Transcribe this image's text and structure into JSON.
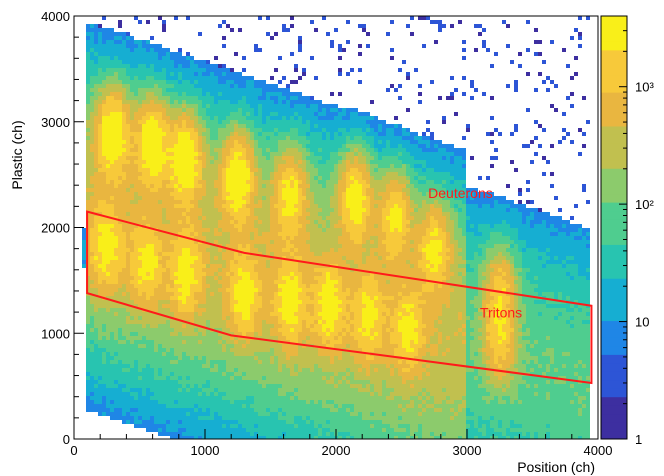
{
  "chart_data": {
    "type": "heatmap",
    "xlabel": "Position (ch)",
    "ylabel": "Plastic (ch)",
    "xlim": [
      0,
      4000
    ],
    "ylim": [
      0,
      4000
    ],
    "x_ticks": [
      0,
      1000,
      2000,
      3000,
      4000
    ],
    "y_ticks": [
      0,
      1000,
      2000,
      3000,
      4000
    ],
    "x_tick_labels": [
      "0",
      "1000",
      "2000",
      "3000",
      "4000"
    ],
    "y_tick_labels": [
      "0",
      "1000",
      "2000",
      "3000",
      "4000"
    ],
    "colorbar": {
      "scale": "log",
      "range": [
        1,
        4000
      ],
      "tick_labels": [
        "1",
        "10",
        "10²",
        "10³"
      ],
      "tick_values": [
        1,
        10,
        100,
        1000
      ],
      "colors": [
        "#3d2fa0",
        "#2d55d6",
        "#1f86e6",
        "#16aed2",
        "#28c4b0",
        "#4fcd8f",
        "#8ccb6c",
        "#c1c04f",
        "#e9b640",
        "#f7c93a",
        "#f9ef19"
      ]
    },
    "annotations": [
      {
        "text": "Deuterons",
        "x": 2950,
        "y": 2280,
        "color": "#ff1a1a"
      },
      {
        "text": "Tritons",
        "x": 3260,
        "y": 1150,
        "color": "#ff1a1a"
      }
    ],
    "selection_polygon": {
      "color": "#ff1a1a",
      "points": [
        [
          100,
          2150
        ],
        [
          1300,
          1760
        ],
        [
          3950,
          1260
        ],
        [
          3950,
          530
        ],
        [
          1200,
          980
        ],
        [
          100,
          1380
        ]
      ]
    },
    "bands": [
      {
        "name": "",
        "centers": [
          [
            300,
            2880,
            3
          ],
          [
            600,
            2800,
            2.8
          ],
          [
            850,
            2640,
            3
          ],
          [
            1250,
            2460,
            2.8
          ],
          [
            1650,
            2300,
            2.2
          ],
          [
            2150,
            2280,
            2.5
          ],
          [
            2450,
            2100,
            2.2
          ],
          [
            2750,
            1800,
            2.2
          ],
          [
            3250,
            1400,
            1.6
          ]
        ]
      },
      {
        "name": "",
        "centers": [
          [
            250,
            1800,
            2
          ],
          [
            550,
            1650,
            1.8
          ],
          [
            850,
            1560,
            2
          ],
          [
            1300,
            1350,
            2
          ],
          [
            1650,
            1280,
            2
          ],
          [
            1950,
            1260,
            2
          ],
          [
            2250,
            1150,
            1.8
          ],
          [
            2550,
            1030,
            1.7
          ],
          [
            3250,
            920,
            1.6
          ]
        ]
      }
    ]
  }
}
